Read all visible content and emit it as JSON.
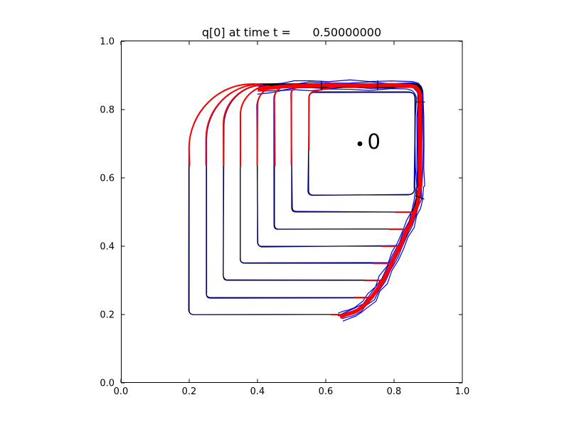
{
  "chart_data": {
    "type": "contour",
    "title": "q[0] at time t =      0.50000000",
    "xlim": [
      0.0,
      1.0
    ],
    "ylim": [
      0.0,
      1.0
    ],
    "grid": false,
    "xticks": {
      "values": [
        0.0,
        0.2,
        0.4,
        0.6,
        0.8,
        1.0
      ],
      "labels": [
        "0.0",
        "0.2",
        "0.4",
        "0.6",
        "0.8",
        "1.0"
      ]
    },
    "yticks": {
      "values": [
        0.0,
        0.2,
        0.4,
        0.6,
        0.8,
        1.0
      ],
      "labels": [
        "0.0",
        "0.2",
        "0.4",
        "0.6",
        "0.8",
        "1.0"
      ]
    },
    "gauge_point": {
      "x": 0.7,
      "y": 0.7,
      "label": "0"
    },
    "colors": {
      "blue": "#0000dd",
      "black": "#000000",
      "red": "#ff0000",
      "axes": "#000000",
      "background": "#ffffff"
    },
    "n_levels": 8,
    "level_spacing": 0.05,
    "contour_levels": [
      {
        "left": 0.2,
        "bottom": 0.2,
        "shoulder": 0.69,
        "top": 0.8755,
        "right": 0.881,
        "red_from": 0.635
      },
      {
        "left": 0.25,
        "bottom": 0.25,
        "shoulder": 0.716,
        "top": 0.8737,
        "right": 0.8792,
        "red_from": 0.637
      },
      {
        "left": 0.3,
        "bottom": 0.3,
        "shoulder": 0.754,
        "top": 0.8719,
        "right": 0.8774,
        "red_from": 0.635
      },
      {
        "left": 0.35,
        "bottom": 0.35,
        "shoulder": 0.783,
        "top": 0.8701,
        "right": 0.8756,
        "red_from": 0.634
      },
      {
        "left": 0.4,
        "bottom": 0.4,
        "shoulder": 0.812,
        "top": 0.8683,
        "right": 0.8738,
        "red_from": 0.636
      },
      {
        "left": 0.45,
        "bottom": 0.45,
        "shoulder": 0.835,
        "top": 0.8665,
        "right": 0.872,
        "red_from": 0.635
      },
      {
        "left": 0.5,
        "bottom": 0.5,
        "shoulder": 0.848,
        "top": 0.8647,
        "right": 0.8702,
        "red_from": 0.636
      },
      {
        "left": 0.55,
        "bottom": 0.55,
        "shoulder": 0.835,
        "top": 0.852,
        "right": 0.861,
        "red_from": 0.68,
        "inner": true
      }
    ],
    "leading_edge": [
      [
        0.643,
        0.192
      ],
      [
        0.658,
        0.199
      ],
      [
        0.676,
        0.205
      ],
      [
        0.695,
        0.214
      ],
      [
        0.715,
        0.229
      ],
      [
        0.735,
        0.251
      ],
      [
        0.752,
        0.275
      ],
      [
        0.768,
        0.301
      ],
      [
        0.7865,
        0.336
      ],
      [
        0.8035,
        0.371
      ],
      [
        0.8185,
        0.402
      ],
      [
        0.8335,
        0.436
      ],
      [
        0.8475,
        0.466
      ],
      [
        0.859,
        0.496
      ],
      [
        0.8675,
        0.521
      ],
      [
        0.8725,
        0.546
      ],
      [
        0.875,
        0.57
      ]
    ],
    "band": [
      [
        0.4,
        0.859
      ],
      [
        0.435,
        0.8635
      ],
      [
        0.47,
        0.8665
      ],
      [
        0.51,
        0.869
      ],
      [
        0.555,
        0.8705
      ],
      [
        0.61,
        0.8715
      ],
      [
        0.67,
        0.871
      ],
      [
        0.73,
        0.871
      ],
      [
        0.79,
        0.871
      ],
      [
        0.849,
        0.871
      ],
      [
        0.8645,
        0.8675
      ],
      [
        0.8735,
        0.8565
      ],
      [
        0.877,
        0.843
      ],
      [
        0.877,
        0.78
      ],
      [
        0.877,
        0.7
      ],
      [
        0.877,
        0.63
      ],
      [
        0.877,
        0.575
      ]
    ],
    "band_cross_ticks": [
      [
        0.5875,
        0.8575,
        0.5875,
        0.8845
      ],
      [
        0.752,
        0.858,
        0.752,
        0.885
      ],
      [
        0.8655,
        0.822,
        0.8905,
        0.822
      ],
      [
        0.8625,
        0.5475,
        0.8885,
        0.538
      ]
    ]
  }
}
